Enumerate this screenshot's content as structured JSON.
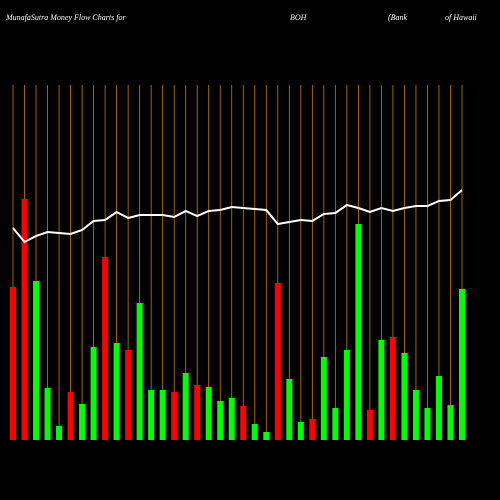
{
  "chart_data": {
    "type": "bar",
    "title": "MunafaSutra  Money Flow  Charts for",
    "ticker": "BOH",
    "company": [
      "(Bank",
      "of Hawaii"
    ],
    "categories": [
      null,
      null,
      null,
      null,
      null,
      null,
      null,
      null,
      null,
      null,
      null,
      null,
      null,
      null,
      null,
      null,
      null,
      null,
      null,
      null,
      null,
      null,
      null,
      null,
      null,
      null,
      null,
      null,
      null,
      null,
      null,
      null,
      null,
      null,
      null,
      null,
      null,
      null,
      null,
      null
    ],
    "bars": {
      "values": [
        153,
        241,
        159,
        52,
        14,
        48,
        36,
        93,
        183,
        97,
        90,
        137,
        50,
        50,
        48,
        67,
        55,
        53,
        39,
        42,
        34,
        16,
        8,
        157,
        61,
        18,
        21,
        83,
        32,
        90,
        216,
        30,
        100,
        103,
        87,
        50,
        32,
        64,
        35,
        151
      ],
      "colors": [
        "#ff0000",
        "#ff0000",
        "#00ff00",
        "#00ff00",
        "#00ff00",
        "#ff0000",
        "#00ff00",
        "#00ff00",
        "#ff0000",
        "#00ff00",
        "#ff0000",
        "#00ff00",
        "#00ff00",
        "#00ff00",
        "#ff0000",
        "#00ff00",
        "#ff0000",
        "#00ff00",
        "#00ff00",
        "#00ff00",
        "#ff0000",
        "#00ff00",
        "#00ff00",
        "#ff0000",
        "#00ff00",
        "#00ff00",
        "#ff0000",
        "#00ff00",
        "#00ff00",
        "#00ff00",
        "#00ff00",
        "#ff0000",
        "#00ff00",
        "#ff0000",
        "#00ff00",
        "#00ff00",
        "#00ff00",
        "#00ff00",
        "#00ff00",
        "#00ff00"
      ]
    },
    "line": {
      "color": "#ffffff",
      "values": [
        212,
        198,
        204,
        208,
        207,
        206,
        210,
        219,
        220,
        228,
        222,
        225,
        225,
        225,
        223,
        229,
        224,
        229,
        230,
        233,
        232,
        231,
        230,
        216,
        218,
        220,
        219,
        226,
        227,
        235,
        232,
        228,
        232,
        229,
        232,
        234,
        234,
        239,
        240,
        250
      ]
    },
    "grid_color": "#cc7a00",
    "ylim": [
      0,
      300
    ]
  }
}
